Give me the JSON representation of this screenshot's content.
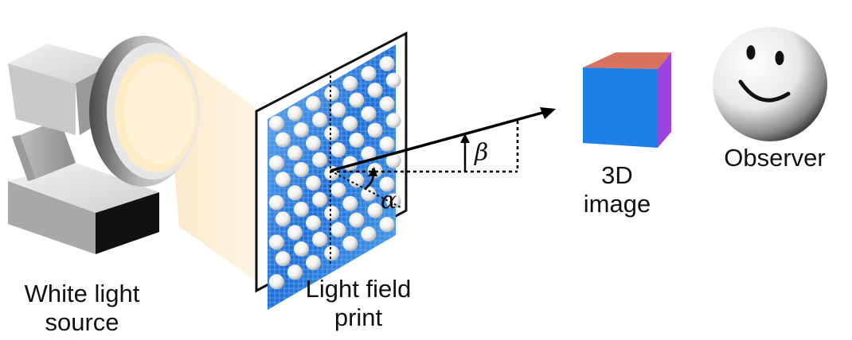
{
  "labels": {
    "source_line1": "White light",
    "source_line2": "source",
    "print_line1": "Light field",
    "print_line2": "print",
    "image_line1": "3D",
    "image_line2": "image",
    "observer": "Observer",
    "alpha": "α",
    "beta": "β"
  },
  "colors": {
    "cone": "#fbeac9",
    "lamp_lens": "#fdeec9",
    "cube_front": "#1e7fe6",
    "cube_top": "#d9735f",
    "cube_side": "#9a45e0",
    "print_blue": "#2a7fe0",
    "ray": "#000000"
  },
  "icons": {
    "lamp": "lamp-icon",
    "cube": "cube-icon",
    "observer": "smiley-face-icon"
  }
}
